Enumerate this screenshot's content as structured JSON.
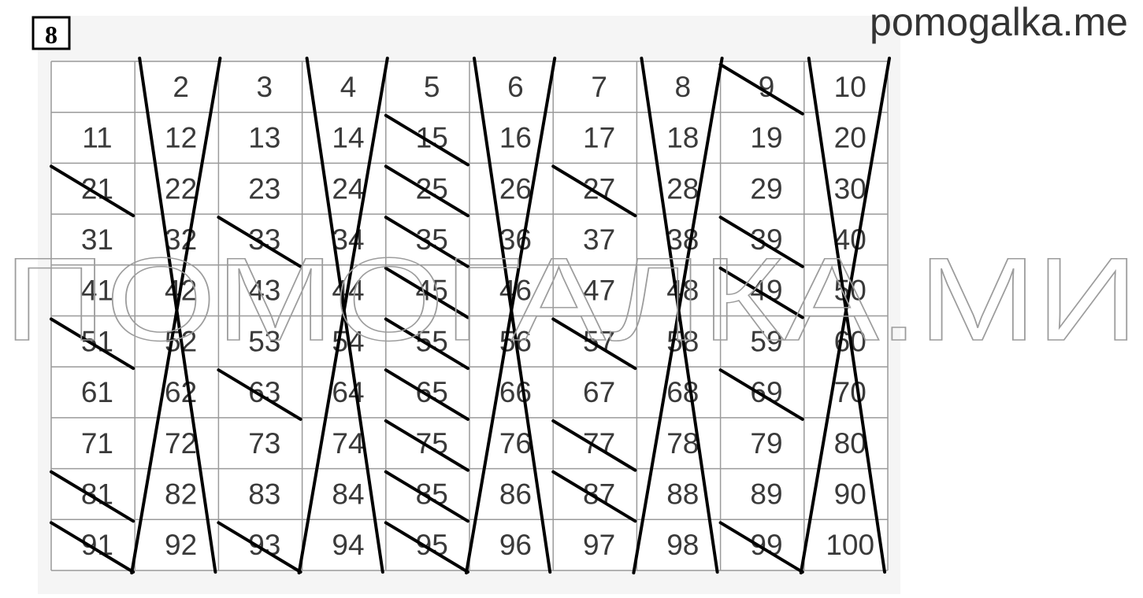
{
  "badge": "8",
  "site": "pomogalka.me",
  "watermark": "ПОМОГАЛКА.МИ",
  "table": {
    "rows": [
      [
        null,
        2,
        3,
        4,
        5,
        6,
        7,
        8,
        9,
        10
      ],
      [
        11,
        12,
        13,
        14,
        15,
        16,
        17,
        18,
        19,
        20
      ],
      [
        21,
        22,
        23,
        24,
        25,
        26,
        27,
        28,
        29,
        30
      ],
      [
        31,
        32,
        33,
        34,
        35,
        36,
        37,
        38,
        39,
        40
      ],
      [
        41,
        42,
        43,
        44,
        45,
        46,
        47,
        48,
        49,
        50
      ],
      [
        51,
        52,
        53,
        54,
        55,
        56,
        57,
        58,
        59,
        60
      ],
      [
        61,
        62,
        63,
        64,
        65,
        66,
        67,
        68,
        69,
        70
      ],
      [
        71,
        72,
        73,
        74,
        75,
        76,
        77,
        78,
        79,
        80
      ],
      [
        81,
        82,
        83,
        84,
        85,
        86,
        87,
        88,
        89,
        90
      ],
      [
        91,
        92,
        93,
        94,
        95,
        96,
        97,
        98,
        99,
        100
      ]
    ]
  }
}
